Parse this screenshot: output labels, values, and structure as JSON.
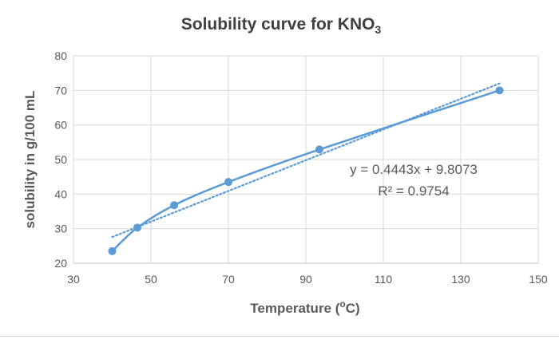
{
  "chart_data": {
    "type": "scatter",
    "title": {
      "main": "Solubility curve for KNO",
      "sub": "3"
    },
    "xlabel": {
      "pre": "Temperature (",
      "sup": "o",
      "post": "C)"
    },
    "ylabel": "solubility in g/100 mL",
    "xlim": [
      30,
      150
    ],
    "ylim": [
      20,
      80
    ],
    "xticks": [
      30,
      50,
      70,
      90,
      110,
      130,
      150
    ],
    "yticks": [
      20,
      30,
      40,
      50,
      60,
      70,
      80
    ],
    "grid": true,
    "series": [
      {
        "points": [
          {
            "x": 40,
            "y": 23.5
          },
          {
            "x": 46.5,
            "y": 30.3
          },
          {
            "x": 56,
            "y": 36.8
          },
          {
            "x": 70,
            "y": 43.5
          },
          {
            "x": 93.5,
            "y": 52.9
          },
          {
            "x": 140,
            "y": 70
          }
        ],
        "smooth": true,
        "color": "#5b9bd5"
      }
    ],
    "trendline": {
      "type": "linear",
      "x_range": [
        40,
        140
      ],
      "slope": 0.4443,
      "intercept": 9.8073,
      "style": "dotted",
      "color": "#5b9bd5",
      "equation": "y = 0.4443x + 9.8073",
      "r_squared": "R² = 0.9754"
    },
    "colors": {
      "axis_text": "#595959",
      "title_text": "#404040",
      "grid": "#d9d9d9"
    }
  }
}
